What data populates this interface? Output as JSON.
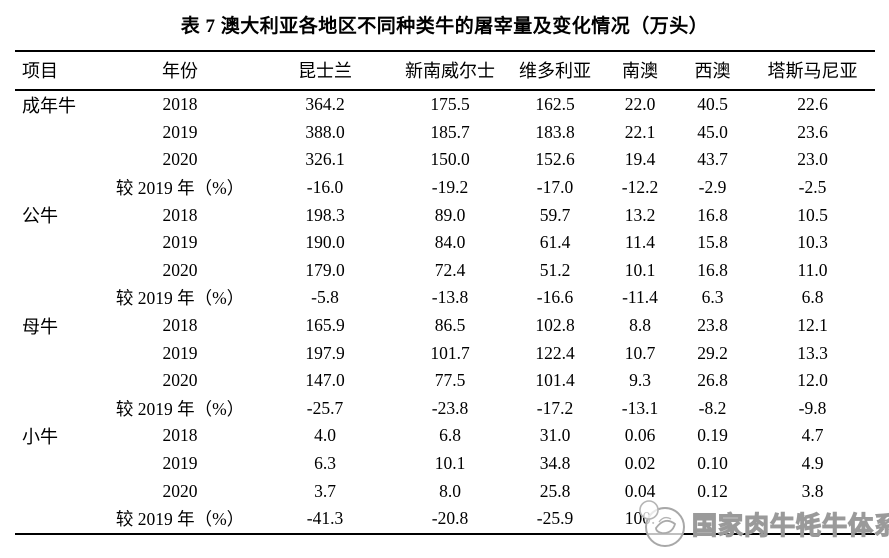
{
  "title": "表 7 澳大利亚各地区不同种类牛的屠宰量及变化情况（万头）",
  "table": {
    "headers": [
      "项目",
      "年份",
      "昆士兰",
      "新南威尔士",
      "维多利亚",
      "南澳",
      "西澳",
      "塔斯马尼亚"
    ],
    "groups": [
      {
        "item": "成年牛",
        "rows": [
          {
            "year": "2018",
            "values": [
              "364.2",
              "175.5",
              "162.5",
              "22.0",
              "40.5",
              "22.6"
            ]
          },
          {
            "year": "2019",
            "values": [
              "388.0",
              "185.7",
              "183.8",
              "22.1",
              "45.0",
              "23.6"
            ]
          },
          {
            "year": "2020",
            "values": [
              "326.1",
              "150.0",
              "152.6",
              "19.4",
              "43.7",
              "23.0"
            ]
          },
          {
            "year": "较 2019 年（%）",
            "values": [
              "-16.0",
              "-19.2",
              "-17.0",
              "-12.2",
              "-2.9",
              "-2.5"
            ]
          }
        ]
      },
      {
        "item": "公牛",
        "rows": [
          {
            "year": "2018",
            "values": [
              "198.3",
              "89.0",
              "59.7",
              "13.2",
              "16.8",
              "10.5"
            ]
          },
          {
            "year": "2019",
            "values": [
              "190.0",
              "84.0",
              "61.4",
              "11.4",
              "15.8",
              "10.3"
            ]
          },
          {
            "year": "2020",
            "values": [
              "179.0",
              "72.4",
              "51.2",
              "10.1",
              "16.8",
              "11.0"
            ]
          },
          {
            "year": "较 2019 年（%）",
            "values": [
              "-5.8",
              "-13.8",
              "-16.6",
              "-11.4",
              "6.3",
              "6.8"
            ]
          }
        ]
      },
      {
        "item": "母牛",
        "rows": [
          {
            "year": "2018",
            "values": [
              "165.9",
              "86.5",
              "102.8",
              "8.8",
              "23.8",
              "12.1"
            ]
          },
          {
            "year": "2019",
            "values": [
              "197.9",
              "101.7",
              "122.4",
              "10.7",
              "29.2",
              "13.3"
            ]
          },
          {
            "year": "2020",
            "values": [
              "147.0",
              "77.5",
              "101.4",
              "9.3",
              "26.8",
              "12.0"
            ]
          },
          {
            "year": "较 2019 年（%）",
            "values": [
              "-25.7",
              "-23.8",
              "-17.2",
              "-13.1",
              "-8.2",
              "-9.8"
            ]
          }
        ]
      },
      {
        "item": "小牛",
        "rows": [
          {
            "year": "2018",
            "values": [
              "4.0",
              "6.8",
              "31.0",
              "0.06",
              "0.19",
              "4.7"
            ]
          },
          {
            "year": "2019",
            "values": [
              "6.3",
              "10.1",
              "34.8",
              "0.02",
              "0.10",
              "4.9"
            ]
          },
          {
            "year": "2020",
            "values": [
              "3.7",
              "8.0",
              "25.8",
              "0.04",
              "0.12",
              "3.8"
            ]
          },
          {
            "year": "较 2019 年（%）",
            "values": [
              "-41.3",
              "-20.8",
              "-25.9",
              "100.",
              "",
              ""
            ]
          }
        ]
      }
    ]
  },
  "watermark": {
    "logo_name": "cattle-emblem",
    "text": "国家肉牛牦牛体系"
  },
  "colors": {
    "text": "#000000",
    "border": "#000000",
    "watermark": "#9a9a9a",
    "background": "#ffffff"
  }
}
